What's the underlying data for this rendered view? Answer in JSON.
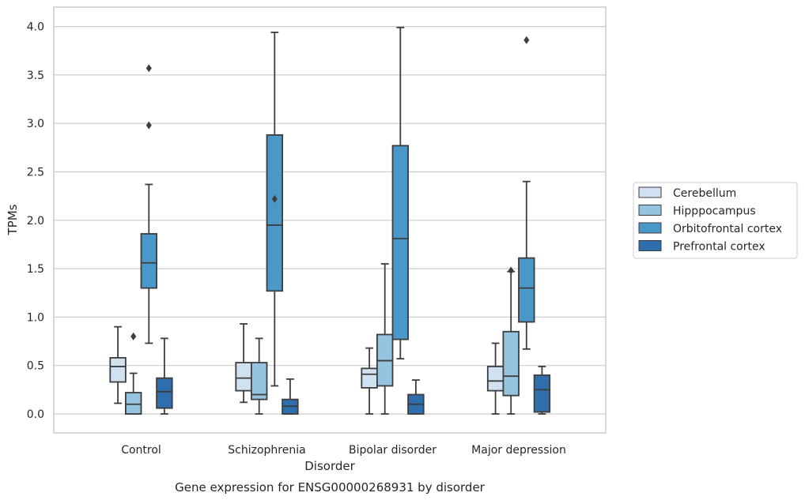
{
  "chart_data": {
    "type": "box",
    "title": "",
    "caption": "Gene expression for ENSG00000268931 by disorder",
    "xlabel": "Disorder",
    "ylabel": "TPMs",
    "ylim": [
      -0.2,
      4.2
    ],
    "yticks": [
      "0.0",
      "0.5",
      "1.0",
      "1.5",
      "2.0",
      "2.5",
      "3.0",
      "3.5",
      "4.0"
    ],
    "grid": "y",
    "legend_position": "right",
    "categories": [
      "Control",
      "Schizophrenia",
      "Bipolar disorder",
      "Major depression"
    ],
    "series": [
      {
        "name": "Cerebellum",
        "color": "#d0e1f2",
        "boxes": [
          {
            "whislo": 0.11,
            "q1": 0.33,
            "med": 0.49,
            "q3": 0.58,
            "whishi": 0.9,
            "fliers": []
          },
          {
            "whislo": 0.12,
            "q1": 0.24,
            "med": 0.37,
            "q3": 0.53,
            "whishi": 0.93,
            "fliers": []
          },
          {
            "whislo": 0.0,
            "q1": 0.27,
            "med": 0.41,
            "q3": 0.47,
            "whishi": 0.68,
            "fliers": []
          },
          {
            "whislo": 0.0,
            "q1": 0.24,
            "med": 0.34,
            "q3": 0.49,
            "whishi": 0.73,
            "fliers": []
          }
        ]
      },
      {
        "name": "Hipppocampus",
        "color": "#94c4df",
        "boxes": [
          {
            "whislo": 0.0,
            "q1": 0.0,
            "med": 0.1,
            "q3": 0.22,
            "whishi": 0.42,
            "fliers": [
              0.8
            ]
          },
          {
            "whislo": 0.0,
            "q1": 0.15,
            "med": 0.2,
            "q3": 0.53,
            "whishi": 0.78,
            "fliers": []
          },
          {
            "whislo": 0.0,
            "q1": 0.29,
            "med": 0.55,
            "q3": 0.82,
            "whishi": 1.55,
            "fliers": []
          },
          {
            "whislo": 0.0,
            "q1": 0.19,
            "med": 0.39,
            "q3": 0.85,
            "whishi": 1.47,
            "fliers": [
              1.48
            ]
          }
        ]
      },
      {
        "name": "Orbitofrontal cortex",
        "color": "#4a98c9",
        "boxes": [
          {
            "whislo": 0.73,
            "q1": 1.3,
            "med": 1.56,
            "q3": 1.86,
            "whishi": 2.37,
            "fliers": [
              2.98,
              3.57
            ]
          },
          {
            "whislo": 0.29,
            "q1": 1.27,
            "med": 1.95,
            "q3": 2.88,
            "whishi": 3.94,
            "fliers": [
              2.22
            ]
          },
          {
            "whislo": 0.57,
            "q1": 0.77,
            "med": 1.81,
            "q3": 2.77,
            "whishi": 3.99,
            "fliers": []
          },
          {
            "whislo": 0.67,
            "q1": 0.95,
            "med": 1.3,
            "q3": 1.61,
            "whishi": 2.4,
            "fliers": [
              3.86
            ]
          }
        ]
      },
      {
        "name": "Prefrontal cortex",
        "color": "#2e6ead",
        "boxes": [
          {
            "whislo": 0.0,
            "q1": 0.06,
            "med": 0.23,
            "q3": 0.37,
            "whishi": 0.78,
            "fliers": []
          },
          {
            "whislo": 0.0,
            "q1": 0.0,
            "med": 0.08,
            "q3": 0.15,
            "whishi": 0.36,
            "fliers": []
          },
          {
            "whislo": 0.0,
            "q1": 0.0,
            "med": 0.1,
            "q3": 0.2,
            "whishi": 0.35,
            "fliers": []
          },
          {
            "whislo": 0.0,
            "q1": 0.02,
            "med": 0.25,
            "q3": 0.4,
            "whishi": 0.49,
            "fliers": []
          }
        ]
      }
    ]
  }
}
